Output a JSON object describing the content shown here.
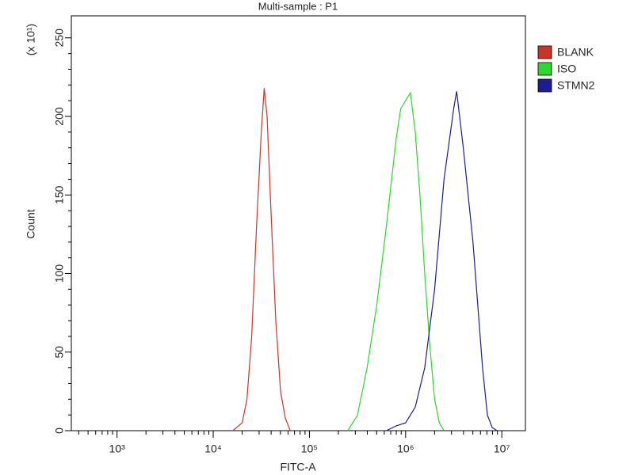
{
  "chart_data": {
    "type": "line",
    "title": "Multi-sample : P1",
    "x_label": "FITC-A",
    "y_label": "Count",
    "y_annotation": "(x 10¹)",
    "x_scale": "log",
    "xlim": [
      335,
      17600000
    ],
    "ylim": [
      0,
      264
    ],
    "xticks": [
      {
        "value": 1000,
        "label": "10³"
      },
      {
        "value": 10000,
        "label": "10⁴"
      },
      {
        "value": 100000,
        "label": "10⁵"
      },
      {
        "value": 1000000,
        "label": "10⁶"
      },
      {
        "value": 10000000,
        "label": "10⁷"
      }
    ],
    "yticks": [
      0,
      50,
      100,
      150,
      200,
      250
    ],
    "legend": "right",
    "series": [
      {
        "name": "BLANK",
        "color": "#c8352b",
        "x": [
          16000,
          20000,
          22400,
          25100,
          28200,
          31600,
          33900,
          36300,
          39800,
          44700,
          50100,
          56200,
          63100
        ],
        "values": [
          0,
          5,
          20,
          60,
          130,
          190,
          218,
          200,
          140,
          70,
          25,
          8,
          0
        ]
      },
      {
        "name": "ISO",
        "color": "#2fd62f",
        "x": [
          251000,
          316000,
          398000,
          501000,
          631000,
          794000,
          891000,
          1000000,
          1120000,
          1260000,
          1410000,
          1580000,
          1780000,
          2000000,
          2240000,
          2510000
        ],
        "values": [
          0,
          10,
          40,
          80,
          130,
          185,
          205,
          210,
          215,
          190,
          150,
          100,
          55,
          20,
          5,
          0
        ]
      },
      {
        "name": "STMN2",
        "color": "#1d1d8f",
        "x": [
          631000,
          794000,
          1000000,
          1260000,
          1580000,
          2000000,
          2510000,
          3160000,
          3390000,
          3980000,
          5010000,
          6310000,
          7080000,
          7940000,
          8910000
        ],
        "values": [
          0,
          3,
          5,
          15,
          40,
          90,
          160,
          205,
          216,
          180,
          120,
          40,
          10,
          2,
          0
        ]
      }
    ]
  }
}
